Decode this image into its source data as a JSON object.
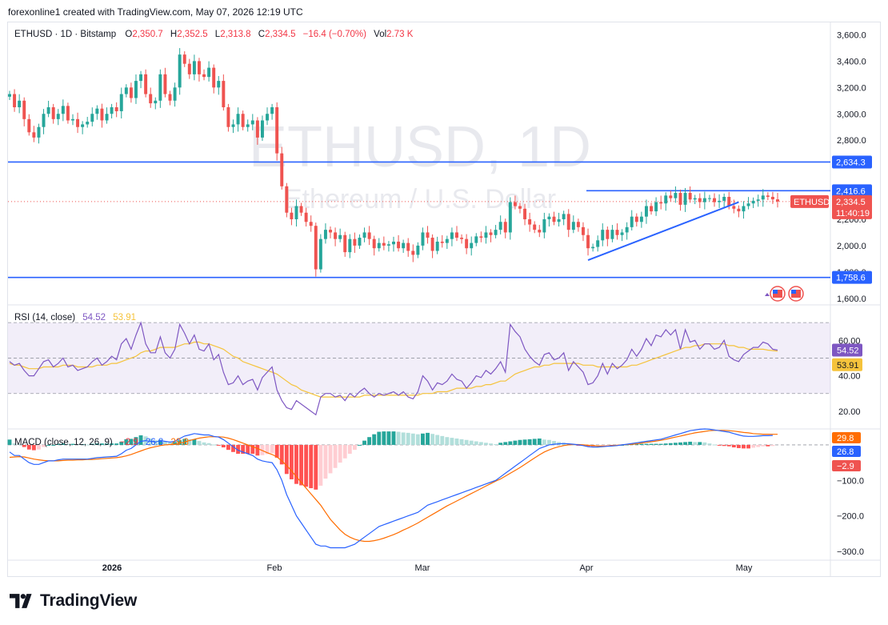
{
  "header": {
    "credit": "forexonline1 created with TradingView.com, May 07, 2026 12:19 UTC"
  },
  "footer": {
    "brand": "TradingView"
  },
  "legend": {
    "symbol": "ETHUSD · 1D · Bitstamp",
    "o_label": "O",
    "o_value": "2,350.7",
    "h_label": "H",
    "h_value": "2,352.5",
    "l_label": "L",
    "l_value": "2,313.8",
    "c_label": "C",
    "c_value": "2,334.5",
    "change": "−16.4 (−0.70%)",
    "vol_label": "Vol",
    "vol_value": "2.73 K"
  },
  "watermark": {
    "title": "ETHUSD, 1D",
    "subtitle": "Ethereum / U.S. Dollar"
  },
  "price_axis": {
    "ticks": [
      "3,600.0",
      "3,400.0",
      "3,200.0",
      "3,000.0",
      "2,800.0",
      "2,200.0",
      "2,000.0",
      "1,800.0",
      "1,600.0"
    ],
    "levels": [
      {
        "value": 2634.3,
        "label": "2,634.3"
      },
      {
        "value": 2416.6,
        "label": "2,416.6"
      },
      {
        "value": 1758.6,
        "label": "1,758.6"
      }
    ],
    "current_label": "2,334.5",
    "current_value": 2334.5,
    "symbol_tag": "ETHUSD",
    "countdown": "11:40:19"
  },
  "rsi": {
    "legend": "RSI (14, close)",
    "rsi_value": "54.52",
    "ma_value": "53.91",
    "ticks": [
      "60.00",
      "40.00",
      "20.00"
    ],
    "band": [
      30,
      70
    ]
  },
  "macd": {
    "legend": "MACD (close, 12, 26, 9)",
    "hist_value": "−2.9",
    "macd_value": "26.8",
    "signal_value": "29.8",
    "ticks": [
      "−100.0",
      "−200.0",
      "−300.0"
    ]
  },
  "time_axis": [
    "2026",
    "Feb",
    "Mar",
    "Apr",
    "May"
  ],
  "colors": {
    "up": "#26a69a",
    "down": "#ef5350",
    "level": "#2962ff",
    "rsi": "#7e57c2",
    "rsi_ma": "#f5c33b",
    "macd": "#2962ff",
    "signal": "#ff6d00"
  },
  "chart_data": {
    "type": "candlestick",
    "title": "ETHUSD, 1D",
    "subtitle": "Ethereum / U.S. Dollar",
    "price_range": [
      1550,
      3700
    ],
    "last_close": 2334.5,
    "horizontal_levels": [
      2634.3,
      2416.6,
      1758.6
    ],
    "trendline": {
      "from": [
        "Mar 27",
        1890
      ],
      "to": [
        "Apr 27",
        2330
      ]
    },
    "closes": [
      3150,
      3050,
      3100,
      2960,
      2860,
      2820,
      2900,
      3000,
      3050,
      2960,
      3000,
      3060,
      2950,
      2960,
      2900,
      2920,
      2940,
      3000,
      3040,
      2950,
      3000,
      3050,
      3020,
      3150,
      3200,
      3120,
      3250,
      3300,
      3150,
      3080,
      3100,
      3300,
      3150,
      3100,
      3200,
      3450,
      3380,
      3300,
      3400,
      3300,
      3280,
      3350,
      3200,
      3250,
      3050,
      2900,
      2920,
      3000,
      2900,
      2920,
      2950,
      2820,
      2950,
      3000,
      3050,
      2700,
      2450,
      2250,
      2200,
      2300,
      2250,
      2180,
      2150,
      1820,
      2050,
      2120,
      2100,
      2050,
      2080,
      1950,
      2050,
      2000,
      2060,
      2100,
      2050,
      1980,
      2020,
      2000,
      2010,
      2030,
      1980,
      2020,
      1960,
      1930,
      2000,
      2100,
      2060,
      1960,
      2030,
      2020,
      2050,
      2100,
      2060,
      2050,
      1980,
      2020,
      2070,
      2060,
      2100,
      2080,
      2120,
      2180,
      2100,
      2330,
      2300,
      2280,
      2200,
      2160,
      2120,
      2100,
      2200,
      2220,
      2180,
      2200,
      2240,
      2120,
      2180,
      2140,
      2080,
      1980,
      1990,
      2040,
      2120,
      2050,
      2120,
      2080,
      2100,
      2140,
      2220,
      2180,
      2220,
      2300,
      2260,
      2330,
      2320,
      2380,
      2360,
      2400,
      2310,
      2400,
      2350,
      2360,
      2330,
      2360,
      2360,
      2330,
      2340,
      2370,
      2300,
      2280,
      2260,
      2300,
      2320,
      2340,
      2350,
      2380,
      2370,
      2351,
      2334.5
    ],
    "rsi": [
      48,
      46,
      47,
      43,
      40,
      40,
      44,
      48,
      49,
      45,
      47,
      50,
      45,
      46,
      43,
      44,
      45,
      48,
      50,
      46,
      48,
      51,
      49,
      58,
      61,
      55,
      63,
      70,
      58,
      53,
      53,
      62,
      53,
      50,
      55,
      69,
      64,
      58,
      63,
      55,
      54,
      58,
      49,
      52,
      42,
      35,
      36,
      40,
      35,
      37,
      38,
      32,
      39,
      42,
      45,
      32,
      26,
      22,
      21,
      26,
      24,
      22,
      20,
      18,
      28,
      30,
      30,
      28,
      29,
      26,
      30,
      28,
      31,
      33,
      30,
      28,
      30,
      29,
      30,
      31,
      29,
      31,
      28,
      27,
      31,
      40,
      37,
      32,
      36,
      35,
      37,
      41,
      38,
      37,
      33,
      36,
      40,
      39,
      43,
      41,
      44,
      48,
      42,
      69,
      65,
      62,
      55,
      51,
      48,
      46,
      52,
      53,
      49,
      50,
      53,
      43,
      48,
      45,
      42,
      35,
      36,
      40,
      47,
      41,
      47,
      44,
      46,
      49,
      55,
      51,
      55,
      61,
      57,
      63,
      62,
      66,
      63,
      66,
      55,
      66,
      59,
      60,
      55,
      58,
      58,
      55,
      56,
      60,
      51,
      49,
      48,
      52,
      54,
      56,
      56,
      59,
      58,
      55,
      54.5
    ],
    "rsi_ma": [
      47,
      46,
      46,
      45,
      44,
      44,
      44,
      45,
      45,
      45,
      45,
      46,
      46,
      46,
      45,
      45,
      45,
      45,
      46,
      46,
      46,
      47,
      47,
      48,
      49,
      50,
      51,
      53,
      54,
      54,
      55,
      56,
      56,
      56,
      56,
      57,
      58,
      58,
      59,
      59,
      58,
      58,
      57,
      56,
      55,
      53,
      51,
      50,
      48,
      47,
      46,
      45,
      44,
      43,
      42,
      41,
      39,
      37,
      35,
      34,
      32,
      31,
      30,
      29,
      28,
      28,
      28,
      28,
      28,
      28,
      28,
      28,
      28,
      29,
      29,
      29,
      29,
      29,
      29,
      29,
      29,
      29,
      29,
      29,
      29,
      30,
      30,
      30,
      31,
      31,
      31,
      32,
      33,
      33,
      33,
      33,
      34,
      34,
      35,
      35,
      36,
      37,
      37,
      39,
      41,
      42,
      43,
      44,
      45,
      45,
      46,
      46,
      47,
      47,
      47,
      47,
      47,
      47,
      46,
      46,
      46,
      45,
      45,
      45,
      45,
      45,
      45,
      45,
      46,
      46,
      47,
      48,
      49,
      50,
      51,
      52,
      53,
      54,
      55,
      56,
      56,
      57,
      57,
      58,
      58,
      58,
      58,
      58,
      57,
      57,
      56,
      56,
      55,
      55,
      55,
      55,
      54.5,
      54.2,
      53.91
    ],
    "macd": [
      -20,
      -30,
      -30,
      -40,
      -50,
      -55,
      -55,
      -50,
      -45,
      -45,
      -42,
      -40,
      -40,
      -40,
      -40,
      -40,
      -40,
      -38,
      -36,
      -35,
      -34,
      -33,
      -32,
      -25,
      -15,
      -10,
      0,
      10,
      12,
      10,
      8,
      12,
      10,
      8,
      10,
      18,
      25,
      28,
      32,
      30,
      28,
      28,
      24,
      22,
      15,
      5,
      -5,
      -15,
      -20,
      -25,
      -30,
      -40,
      -45,
      -48,
      -50,
      -70,
      -100,
      -140,
      -170,
      -200,
      -220,
      -240,
      -260,
      -280,
      -285,
      -285,
      -290,
      -290,
      -290,
      -290,
      -285,
      -280,
      -270,
      -260,
      -250,
      -240,
      -230,
      -225,
      -220,
      -215,
      -210,
      -205,
      -200,
      -195,
      -190,
      -180,
      -170,
      -165,
      -160,
      -155,
      -150,
      -145,
      -140,
      -135,
      -130,
      -125,
      -120,
      -115,
      -110,
      -105,
      -100,
      -90,
      -80,
      -70,
      -60,
      -50,
      -40,
      -30,
      -20,
      -10,
      -5,
      0,
      2,
      3,
      4,
      3,
      2,
      0,
      -2,
      -5,
      -6,
      -6,
      -5,
      -4,
      -3,
      -2,
      0,
      2,
      4,
      6,
      8,
      10,
      12,
      14,
      16,
      20,
      24,
      28,
      32,
      36,
      40,
      42,
      44,
      45,
      44,
      42,
      40,
      38,
      36,
      32,
      28,
      25,
      24,
      24,
      25,
      26,
      26,
      26.8
    ],
    "signal": [
      -35,
      -34,
      -33,
      -34,
      -37,
      -40,
      -42,
      -44,
      -45,
      -45,
      -45,
      -44,
      -43,
      -43,
      -42,
      -42,
      -41,
      -41,
      -40,
      -39,
      -38,
      -37,
      -36,
      -34,
      -31,
      -27,
      -22,
      -17,
      -12,
      -8,
      -5,
      -2,
      0,
      1,
      2,
      5,
      8,
      12,
      16,
      19,
      21,
      23,
      23,
      23,
      22,
      19,
      15,
      10,
      5,
      0,
      -5,
      -10,
      -16,
      -22,
      -27,
      -34,
      -45,
      -58,
      -73,
      -90,
      -106,
      -122,
      -138,
      -154,
      -170,
      -190,
      -210,
      -225,
      -240,
      -252,
      -260,
      -266,
      -270,
      -272,
      -272,
      -270,
      -267,
      -263,
      -258,
      -253,
      -247,
      -240,
      -234,
      -227,
      -220,
      -212,
      -204,
      -196,
      -188,
      -180,
      -172,
      -165,
      -158,
      -151,
      -144,
      -137,
      -130,
      -123,
      -116,
      -109,
      -102,
      -96,
      -88,
      -80,
      -72,
      -64,
      -55,
      -46,
      -37,
      -28,
      -20,
      -14,
      -9,
      -5,
      -2,
      0,
      1,
      1,
      0,
      -1,
      -2,
      -3,
      -3,
      -3,
      -2,
      -1,
      0,
      1,
      2,
      3,
      5,
      7,
      9,
      11,
      13,
      16,
      19,
      22,
      25,
      28,
      31,
      34,
      36,
      38,
      40,
      41,
      41,
      41,
      40,
      39,
      37,
      35,
      34,
      32,
      31,
      30,
      30,
      29.8,
      29.8
    ],
    "hist_last": -2.9
  }
}
